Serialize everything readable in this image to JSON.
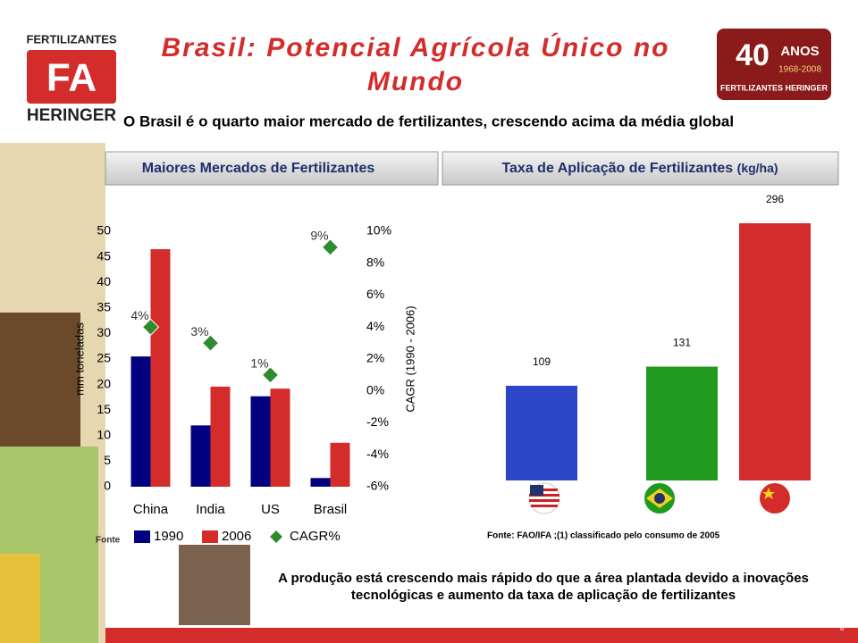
{
  "logo": {
    "top": "FERTILIZANTES",
    "bottom": "HERINGER"
  },
  "badge": {
    "number": "40",
    "word": "ANOS",
    "years": "1968-2008",
    "name": "FERTILIZANTES HERINGER"
  },
  "title": "Brasil: Potencial Agrícola Único no Mundo",
  "subtitle": "O Brasil é o quarto maior mercado de fertilizantes, crescendo acima da média global",
  "chart_data": [
    {
      "type": "bar",
      "title": "Maiores Mercados de Fertilizantes",
      "y_label": "mm toneladas",
      "y2_label": "CAGR (1990 - 2006)",
      "categories": [
        "China",
        "India",
        "US",
        "Brasil"
      ],
      "series": [
        {
          "name": "1990",
          "color": "#000080",
          "values": [
            25.5,
            12,
            17.7,
            1.7
          ]
        },
        {
          "name": "2006",
          "color": "#d42b2b",
          "values": [
            46.5,
            19.6,
            19.2,
            8.6
          ]
        },
        {
          "name": "CAGR%",
          "color": "#2e8b2e",
          "axis": "y2",
          "marker": "diamond",
          "values": [
            4,
            3,
            1,
            9
          ],
          "value_labels": [
            "4%",
            "3%",
            "1%",
            "9%"
          ]
        }
      ],
      "ylim": [
        0,
        50
      ],
      "yticks": [
        0,
        5,
        10,
        15,
        20,
        25,
        30,
        35,
        40,
        45,
        50
      ],
      "y2lim": [
        -6,
        10
      ],
      "y2ticks": [
        {
          "value": -6,
          "label": "-6%"
        },
        {
          "value": -4,
          "label": "-4%"
        },
        {
          "value": -2,
          "label": "-2%"
        },
        {
          "value": 0,
          "label": "0%"
        },
        {
          "value": 2,
          "label": "2%"
        },
        {
          "value": 4,
          "label": "4%"
        },
        {
          "value": 6,
          "label": "6%"
        },
        {
          "value": 8,
          "label": "8%"
        },
        {
          "value": 10,
          "label": "10%"
        }
      ],
      "source": "Fonte"
    },
    {
      "type": "bar",
      "title": "Taxa de Aplicação de Fertilizantes",
      "unit": "(kg/ha)",
      "categories": [
        null,
        null,
        null
      ],
      "values": [
        109,
        131,
        296
      ],
      "colors": [
        "#2b47c8",
        "#1f9a1f",
        "#d42b2b"
      ],
      "source": "Fonte: FAO/IFA ;(1) classificado pelo consumo de 2005"
    }
  ],
  "conclusion": [
    "A produção está crescendo mais rápido do que a área plantada devido a inovações",
    "tecnológicas e aumento da taxa de aplicação de fertilizantes"
  ],
  "page_number": "8"
}
